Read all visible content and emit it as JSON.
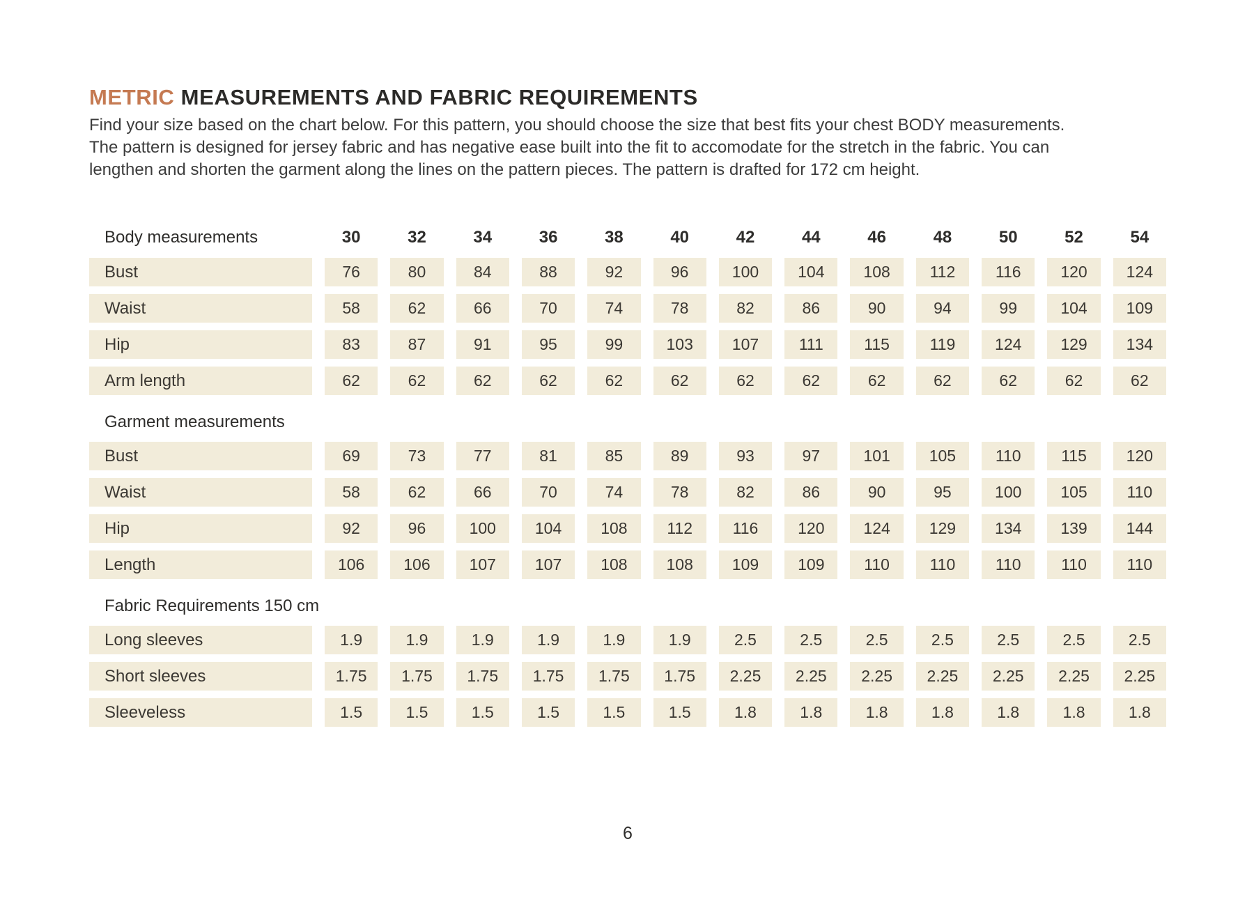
{
  "title": {
    "highlight": "METRIC",
    "rest": "MEASUREMENTS AND FABRIC REQUIREMENTS"
  },
  "intro": "Find your size based on the chart below. For this pattern, you should choose the size that best fits your chest BODY measurements.\nThe pattern is designed for jersey fabric and has negative ease built into the fit to accomodate for the stretch in the fabric. You can\nlengthen and shorten the garment along the lines on the pattern pieces. The pattern is drafted for 172 cm height.",
  "page_number": "6",
  "colors": {
    "accent": "#C57A52",
    "cell_bg": "#F2ECDA",
    "text": "#3B3833"
  },
  "table": {
    "columns": [
      "30",
      "32",
      "34",
      "36",
      "38",
      "40",
      "42",
      "44",
      "46",
      "48",
      "50",
      "52",
      "54"
    ],
    "sections": [
      {
        "title": "Body measurements",
        "show_sizes": true,
        "rows": [
          {
            "label": "Bust",
            "values": [
              "76",
              "80",
              "84",
              "88",
              "92",
              "96",
              "100",
              "104",
              "108",
              "112",
              "116",
              "120",
              "124"
            ]
          },
          {
            "label": "Waist",
            "values": [
              "58",
              "62",
              "66",
              "70",
              "74",
              "78",
              "82",
              "86",
              "90",
              "94",
              "99",
              "104",
              "109"
            ]
          },
          {
            "label": "Hip",
            "values": [
              "83",
              "87",
              "91",
              "95",
              "99",
              "103",
              "107",
              "111",
              "115",
              "119",
              "124",
              "129",
              "134"
            ]
          },
          {
            "label": "Arm length",
            "values": [
              "62",
              "62",
              "62",
              "62",
              "62",
              "62",
              "62",
              "62",
              "62",
              "62",
              "62",
              "62",
              "62"
            ]
          }
        ]
      },
      {
        "title": "Garment measurements",
        "show_sizes": false,
        "rows": [
          {
            "label": "Bust",
            "values": [
              "69",
              "73",
              "77",
              "81",
              "85",
              "89",
              "93",
              "97",
              "101",
              "105",
              "110",
              "115",
              "120"
            ]
          },
          {
            "label": "Waist",
            "values": [
              "58",
              "62",
              "66",
              "70",
              "74",
              "78",
              "82",
              "86",
              "90",
              "95",
              "100",
              "105",
              "110"
            ]
          },
          {
            "label": "Hip",
            "values": [
              "92",
              "96",
              "100",
              "104",
              "108",
              "112",
              "116",
              "120",
              "124",
              "129",
              "134",
              "139",
              "144"
            ]
          },
          {
            "label": "Length",
            "values": [
              "106",
              "106",
              "107",
              "107",
              "108",
              "108",
              "109",
              "109",
              "110",
              "110",
              "110",
              "110",
              "110"
            ]
          }
        ]
      },
      {
        "title": "Fabric Requirements 150 cm",
        "show_sizes": false,
        "rows": [
          {
            "label": "Long sleeves",
            "values": [
              "1.9",
              "1.9",
              "1.9",
              "1.9",
              "1.9",
              "1.9",
              "2.5",
              "2.5",
              "2.5",
              "2.5",
              "2.5",
              "2.5",
              "2.5"
            ]
          },
          {
            "label": "Short sleeves",
            "values": [
              "1.75",
              "1.75",
              "1.75",
              "1.75",
              "1.75",
              "1.75",
              "2.25",
              "2.25",
              "2.25",
              "2.25",
              "2.25",
              "2.25",
              "2.25"
            ]
          },
          {
            "label": "Sleeveless",
            "values": [
              "1.5",
              "1.5",
              "1.5",
              "1.5",
              "1.5",
              "1.5",
              "1.8",
              "1.8",
              "1.8",
              "1.8",
              "1.8",
              "1.8",
              "1.8"
            ]
          }
        ]
      }
    ]
  }
}
